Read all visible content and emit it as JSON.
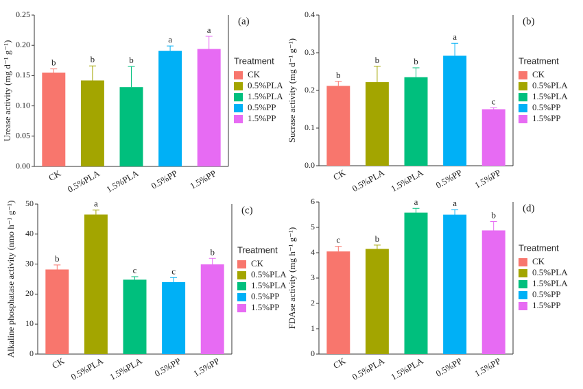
{
  "chart_data": [
    {
      "type": "bar",
      "label": "(a)",
      "y_label": "Urease activity (mg d⁻¹ g⁻¹)",
      "categories": [
        "CK",
        "0.5%PLA",
        "1.5%PLA",
        "0.5%PP",
        "1.5%PP"
      ],
      "values": [
        0.155,
        0.142,
        0.131,
        0.191,
        0.194
      ],
      "errors": [
        0.006,
        0.024,
        0.034,
        0.008,
        0.021
      ],
      "letters": [
        "b",
        "b",
        "b",
        "a",
        "a"
      ],
      "colors": [
        "#f8766d",
        "#a3a500",
        "#00bf7d",
        "#00b0f6",
        "#e76bf3"
      ],
      "ylim": [
        0,
        0.25
      ],
      "yticks": [
        {
          "value": 0,
          "label": "0.00"
        },
        {
          "value": 0.05,
          "label": "0.05"
        },
        {
          "value": 0.1,
          "label": "0.10"
        },
        {
          "value": 0.15,
          "label": "0.15"
        },
        {
          "value": 0.2,
          "label": "0.20"
        },
        {
          "value": 0.25,
          "label": "0.25"
        }
      ],
      "legend_title": "Treatment"
    },
    {
      "type": "bar",
      "label": "(b)",
      "y_label": "Sucrase activity (mg d⁻¹ g⁻¹)",
      "categories": [
        "CK",
        "0.5%PLA",
        "1.5%PLA",
        "0.5%PP",
        "1.5%PP"
      ],
      "values": [
        0.212,
        0.222,
        0.235,
        0.292,
        0.15
      ],
      "errors": [
        0.012,
        0.042,
        0.025,
        0.033,
        0.004
      ],
      "letters": [
        "b",
        "b",
        "b",
        "a",
        "c"
      ],
      "colors": [
        "#f8766d",
        "#a3a500",
        "#00bf7d",
        "#00b0f6",
        "#e76bf3"
      ],
      "ylim": [
        0,
        0.4
      ],
      "yticks": [
        {
          "value": 0,
          "label": "0.0"
        },
        {
          "value": 0.1,
          "label": "0.1"
        },
        {
          "value": 0.2,
          "label": "0.2"
        },
        {
          "value": 0.3,
          "label": "0.3"
        },
        {
          "value": 0.4,
          "label": "0.4"
        }
      ],
      "legend_title": "Treatment"
    },
    {
      "type": "bar",
      "label": "(c)",
      "y_label": "Alkaline phosphatase activity (nmo h⁻¹ g⁻¹)",
      "categories": [
        "CK",
        "0.5%PLA",
        "1.5%PLA",
        "0.5%PP",
        "1.5%PP"
      ],
      "values": [
        28.2,
        46.5,
        24.8,
        24.0,
        29.9
      ],
      "errors": [
        1.5,
        1.5,
        1.0,
        1.5,
        2.0
      ],
      "letters": [
        "b",
        "a",
        "c",
        "c",
        "b"
      ],
      "colors": [
        "#f8766d",
        "#a3a500",
        "#00bf7d",
        "#00b0f6",
        "#e76bf3"
      ],
      "ylim": [
        0,
        50
      ],
      "yticks": [
        0,
        10,
        20,
        30,
        40,
        50
      ],
      "legend_title": "Treatment"
    },
    {
      "type": "bar",
      "label": "(d)",
      "y_label": "FDAse activity (mg h⁻¹ g⁻¹)",
      "categories": [
        "CK",
        "0.5%PLA",
        "1.5%PLA",
        "0.5%PP",
        "1.5%PP"
      ],
      "values": [
        4.05,
        4.15,
        5.58,
        5.5,
        4.88
      ],
      "errors": [
        0.2,
        0.15,
        0.17,
        0.2,
        0.35
      ],
      "letters": [
        "c",
        "b",
        "a",
        "a",
        "b"
      ],
      "colors": [
        "#f8766d",
        "#a3a500",
        "#00bf7d",
        "#00b0f6",
        "#e76bf3"
      ],
      "ylim": [
        0,
        6
      ],
      "yticks": [
        0,
        1,
        2,
        3,
        4,
        5,
        6
      ],
      "legend_title": "Treatment"
    }
  ]
}
